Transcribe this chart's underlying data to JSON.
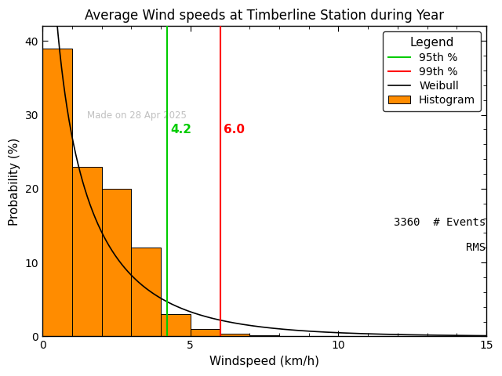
{
  "title": "Average Wind speeds at Timberline Station during Year",
  "xlabel": "Windspeed (km/h)",
  "ylabel": "Probability (%)",
  "xlim": [
    0,
    15
  ],
  "ylim": [
    0,
    42
  ],
  "yticks": [
    0,
    10,
    20,
    30,
    40
  ],
  "xticks": [
    0,
    5,
    10,
    15
  ],
  "bar_edges": [
    0,
    1,
    2,
    3,
    4,
    5,
    6,
    7,
    8,
    9,
    10,
    11,
    12,
    13,
    14,
    15
  ],
  "bar_heights": [
    39.0,
    23.0,
    20.0,
    12.0,
    3.0,
    1.0,
    0.4,
    0.2,
    0.1,
    0.05,
    0.02,
    0.01,
    0.005,
    0.002,
    0.001
  ],
  "bar_color": "#FF8C00",
  "bar_edgecolor": "#000000",
  "line_95_x": 4.2,
  "line_99_x": 6.0,
  "line_95_color": "#00CC00",
  "line_99_color": "#FF0000",
  "weibull_color": "#000000",
  "weibull_k": 0.78,
  "weibull_lambda": 1.6,
  "n_events": 3360,
  "watermark": "Made on 28 Apr 2025",
  "watermark_color": "#C0C0C0",
  "background_color": "#FFFFFF",
  "title_fontsize": 12,
  "axis_fontsize": 11,
  "tick_fontsize": 10,
  "legend_fontsize": 10
}
